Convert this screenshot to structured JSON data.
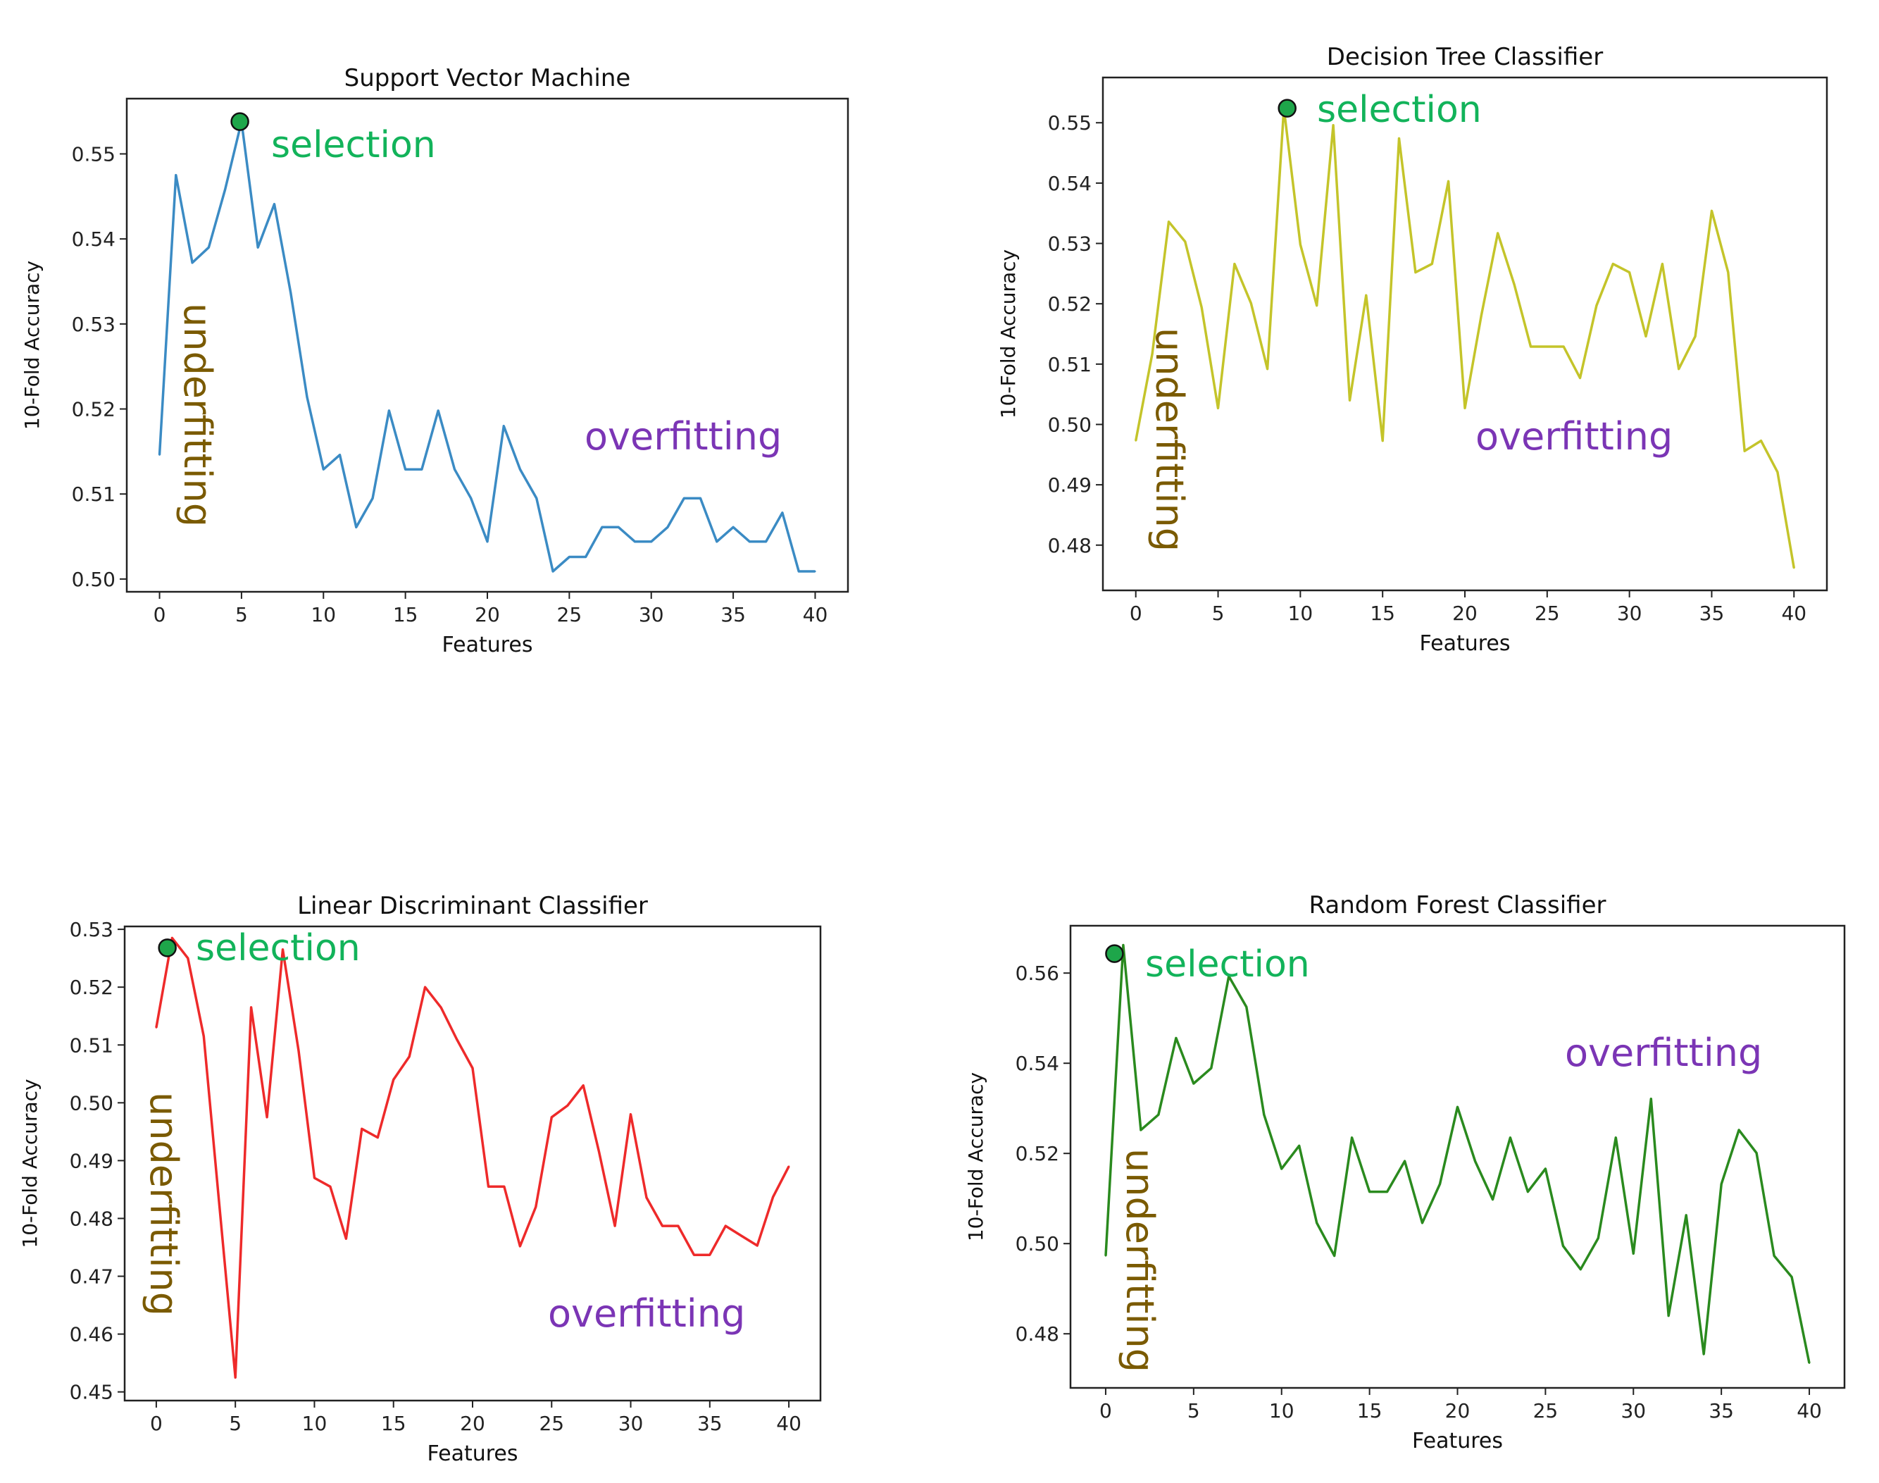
{
  "chart_data": [
    {
      "type": "line",
      "title": "Support Vector Machine",
      "xlabel": "Features",
      "ylabel": "10-Fold Accuracy",
      "xlim": [
        -2,
        42
      ],
      "ylim": [
        0.4985,
        0.5565
      ],
      "xticks": [
        0,
        5,
        10,
        15,
        20,
        25,
        30,
        35,
        40
      ],
      "yticks": [
        0.5,
        0.51,
        0.52,
        0.53,
        0.54,
        0.55
      ],
      "ytick_labels": [
        "0.50",
        "0.51",
        "0.52",
        "0.53",
        "0.54",
        "0.55"
      ],
      "color": "#3b8bc4",
      "x": [
        0,
        1,
        2,
        3,
        4,
        5,
        6,
        7,
        8,
        9,
        10,
        11,
        12,
        13,
        14,
        15,
        16,
        17,
        18,
        19,
        20,
        21,
        22,
        23,
        24,
        25,
        26,
        27,
        28,
        29,
        30,
        31,
        32,
        33,
        34,
        35,
        36,
        37,
        38,
        39,
        40
      ],
      "values": [
        0.5146,
        0.5475,
        0.5372,
        0.539,
        0.5458,
        0.5538,
        0.539,
        0.5441,
        0.5337,
        0.5214,
        0.5129,
        0.5146,
        0.5061,
        0.5095,
        0.5198,
        0.5129,
        0.5129,
        0.5198,
        0.5129,
        0.5095,
        0.5044,
        0.518,
        0.5129,
        0.5095,
        0.5009,
        0.5026,
        0.5026,
        0.5061,
        0.5061,
        0.5044,
        0.5044,
        0.5061,
        0.5095,
        0.5095,
        0.5044,
        0.5061,
        0.5044,
        0.5044,
        0.5078,
        0.5009,
        0.5009
      ],
      "selection_marker": {
        "x": 4.9,
        "y": 0.5538,
        "color": "#1ea64a"
      },
      "annotations": {
        "selection": "selection",
        "underfitting": "underfitting",
        "overfitting": "overfitting"
      }
    },
    {
      "type": "line",
      "title": "Decision Tree Classifier",
      "xlabel": "Features",
      "ylabel": "10-Fold Accuracy",
      "xlim": [
        -2,
        42
      ],
      "ylim": [
        0.4725,
        0.5575
      ],
      "xticks": [
        0,
        5,
        10,
        15,
        20,
        25,
        30,
        35,
        40
      ],
      "yticks": [
        0.48,
        0.49,
        0.5,
        0.51,
        0.52,
        0.53,
        0.54,
        0.55
      ],
      "ytick_labels": [
        "0.48",
        "0.49",
        "0.50",
        "0.51",
        "0.52",
        "0.53",
        "0.54",
        "0.55"
      ],
      "color": "#c4c42a",
      "x": [
        0,
        1,
        2,
        3,
        4,
        5,
        6,
        7,
        8,
        9,
        10,
        11,
        12,
        13,
        14,
        15,
        16,
        17,
        18,
        19,
        20,
        21,
        22,
        23,
        24,
        25,
        26,
        27,
        28,
        29,
        30,
        31,
        32,
        33,
        34,
        35,
        36,
        37,
        38,
        39,
        40
      ],
      "values": [
        0.4973,
        0.5117,
        0.5336,
        0.5303,
        0.5194,
        0.5027,
        0.5266,
        0.5201,
        0.5092,
        0.5524,
        0.5298,
        0.5197,
        0.5496,
        0.504,
        0.5214,
        0.4973,
        0.5474,
        0.5252,
        0.5266,
        0.5403,
        0.5027,
        0.5181,
        0.5317,
        0.5232,
        0.5129,
        0.5129,
        0.5129,
        0.5077,
        0.5197,
        0.5266,
        0.5252,
        0.5146,
        0.5266,
        0.5092,
        0.5146,
        0.5354,
        0.5252,
        0.4956,
        0.4973,
        0.4921,
        0.4762
      ],
      "selection_marker": {
        "x": 9.2,
        "y": 0.5524,
        "color": "#1ea64a"
      },
      "annotations": {
        "selection": "selection",
        "underfitting": "underfitting",
        "overfitting": "overfitting"
      }
    },
    {
      "type": "line",
      "title": "Linear Discriminant Classifier",
      "xlabel": "Features",
      "ylabel": "10-Fold Accuracy",
      "xlim": [
        -2,
        42
      ],
      "ylim": [
        0.4485,
        0.5305
      ],
      "xticks": [
        0,
        5,
        10,
        15,
        20,
        25,
        30,
        35,
        40
      ],
      "yticks": [
        0.45,
        0.46,
        0.47,
        0.48,
        0.49,
        0.5,
        0.51,
        0.52,
        0.53
      ],
      "ytick_labels": [
        "0.45",
        "0.46",
        "0.47",
        "0.48",
        "0.49",
        "0.50",
        "0.51",
        "0.52",
        "0.53"
      ],
      "color": "#ee2a2a",
      "x": [
        0,
        1,
        2,
        3,
        4,
        5,
        6,
        7,
        8,
        9,
        10,
        11,
        12,
        13,
        14,
        15,
        16,
        17,
        18,
        19,
        20,
        21,
        22,
        23,
        24,
        25,
        26,
        27,
        28,
        29,
        30,
        31,
        32,
        33,
        34,
        35,
        36,
        37,
        38,
        39,
        40
      ],
      "values": [
        0.513,
        0.5285,
        0.525,
        0.5115,
        0.482,
        0.4525,
        0.5165,
        0.4975,
        0.5265,
        0.509,
        0.487,
        0.4855,
        0.4765,
        0.4955,
        0.494,
        0.504,
        0.508,
        0.52,
        0.5165,
        0.511,
        0.506,
        0.4855,
        0.4855,
        0.4752,
        0.482,
        0.4975,
        0.4995,
        0.503,
        0.4915,
        0.4787,
        0.498,
        0.4836,
        0.4787,
        0.4787,
        0.4737,
        0.4737,
        0.4787,
        0.477,
        0.4753,
        0.4837,
        0.489
      ],
      "selection_marker": {
        "x": 0.7,
        "y": 0.5268,
        "color": "#1ea64a"
      },
      "annotations": {
        "selection": "selection",
        "underfitting": "underfitting",
        "overfitting": "overfitting"
      }
    },
    {
      "type": "line",
      "title": "Random Forest Classifier",
      "xlabel": "Features",
      "ylabel": "10-Fold Accuracy",
      "xlim": [
        -2,
        42
      ],
      "ylim": [
        0.468,
        0.5705
      ],
      "xticks": [
        0,
        5,
        10,
        15,
        20,
        25,
        30,
        35,
        40
      ],
      "yticks": [
        0.48,
        0.5,
        0.52,
        0.54,
        0.56
      ],
      "ytick_labels": [
        "0.48",
        "0.50",
        "0.52",
        "0.54",
        "0.56"
      ],
      "color": "#2a8a1e",
      "x": [
        0,
        1,
        2,
        3,
        4,
        5,
        6,
        7,
        8,
        9,
        10,
        11,
        12,
        13,
        14,
        15,
        16,
        17,
        18,
        19,
        20,
        21,
        22,
        23,
        24,
        25,
        26,
        27,
        28,
        29,
        30,
        31,
        32,
        33,
        34,
        35,
        36,
        37,
        38,
        39,
        40
      ],
      "values": [
        0.4973,
        0.5662,
        0.5252,
        0.5286,
        0.5456,
        0.5355,
        0.5389,
        0.5593,
        0.5525,
        0.5286,
        0.5166,
        0.5217,
        0.5046,
        0.4973,
        0.5235,
        0.5115,
        0.5115,
        0.5183,
        0.5046,
        0.5132,
        0.5303,
        0.5183,
        0.5098,
        0.5235,
        0.5115,
        0.5166,
        0.4995,
        0.4943,
        0.5012,
        0.5235,
        0.4978,
        0.5321,
        0.484,
        0.5063,
        0.4755,
        0.5132,
        0.5252,
        0.5201,
        0.4973,
        0.4926,
        0.4735
      ],
      "selection_marker": {
        "x": 0.5,
        "y": 0.5643,
        "color": "#1ea64a"
      },
      "annotations": {
        "selection": "selection",
        "underfitting": "underfitting",
        "overfitting": "overfitting"
      }
    }
  ]
}
